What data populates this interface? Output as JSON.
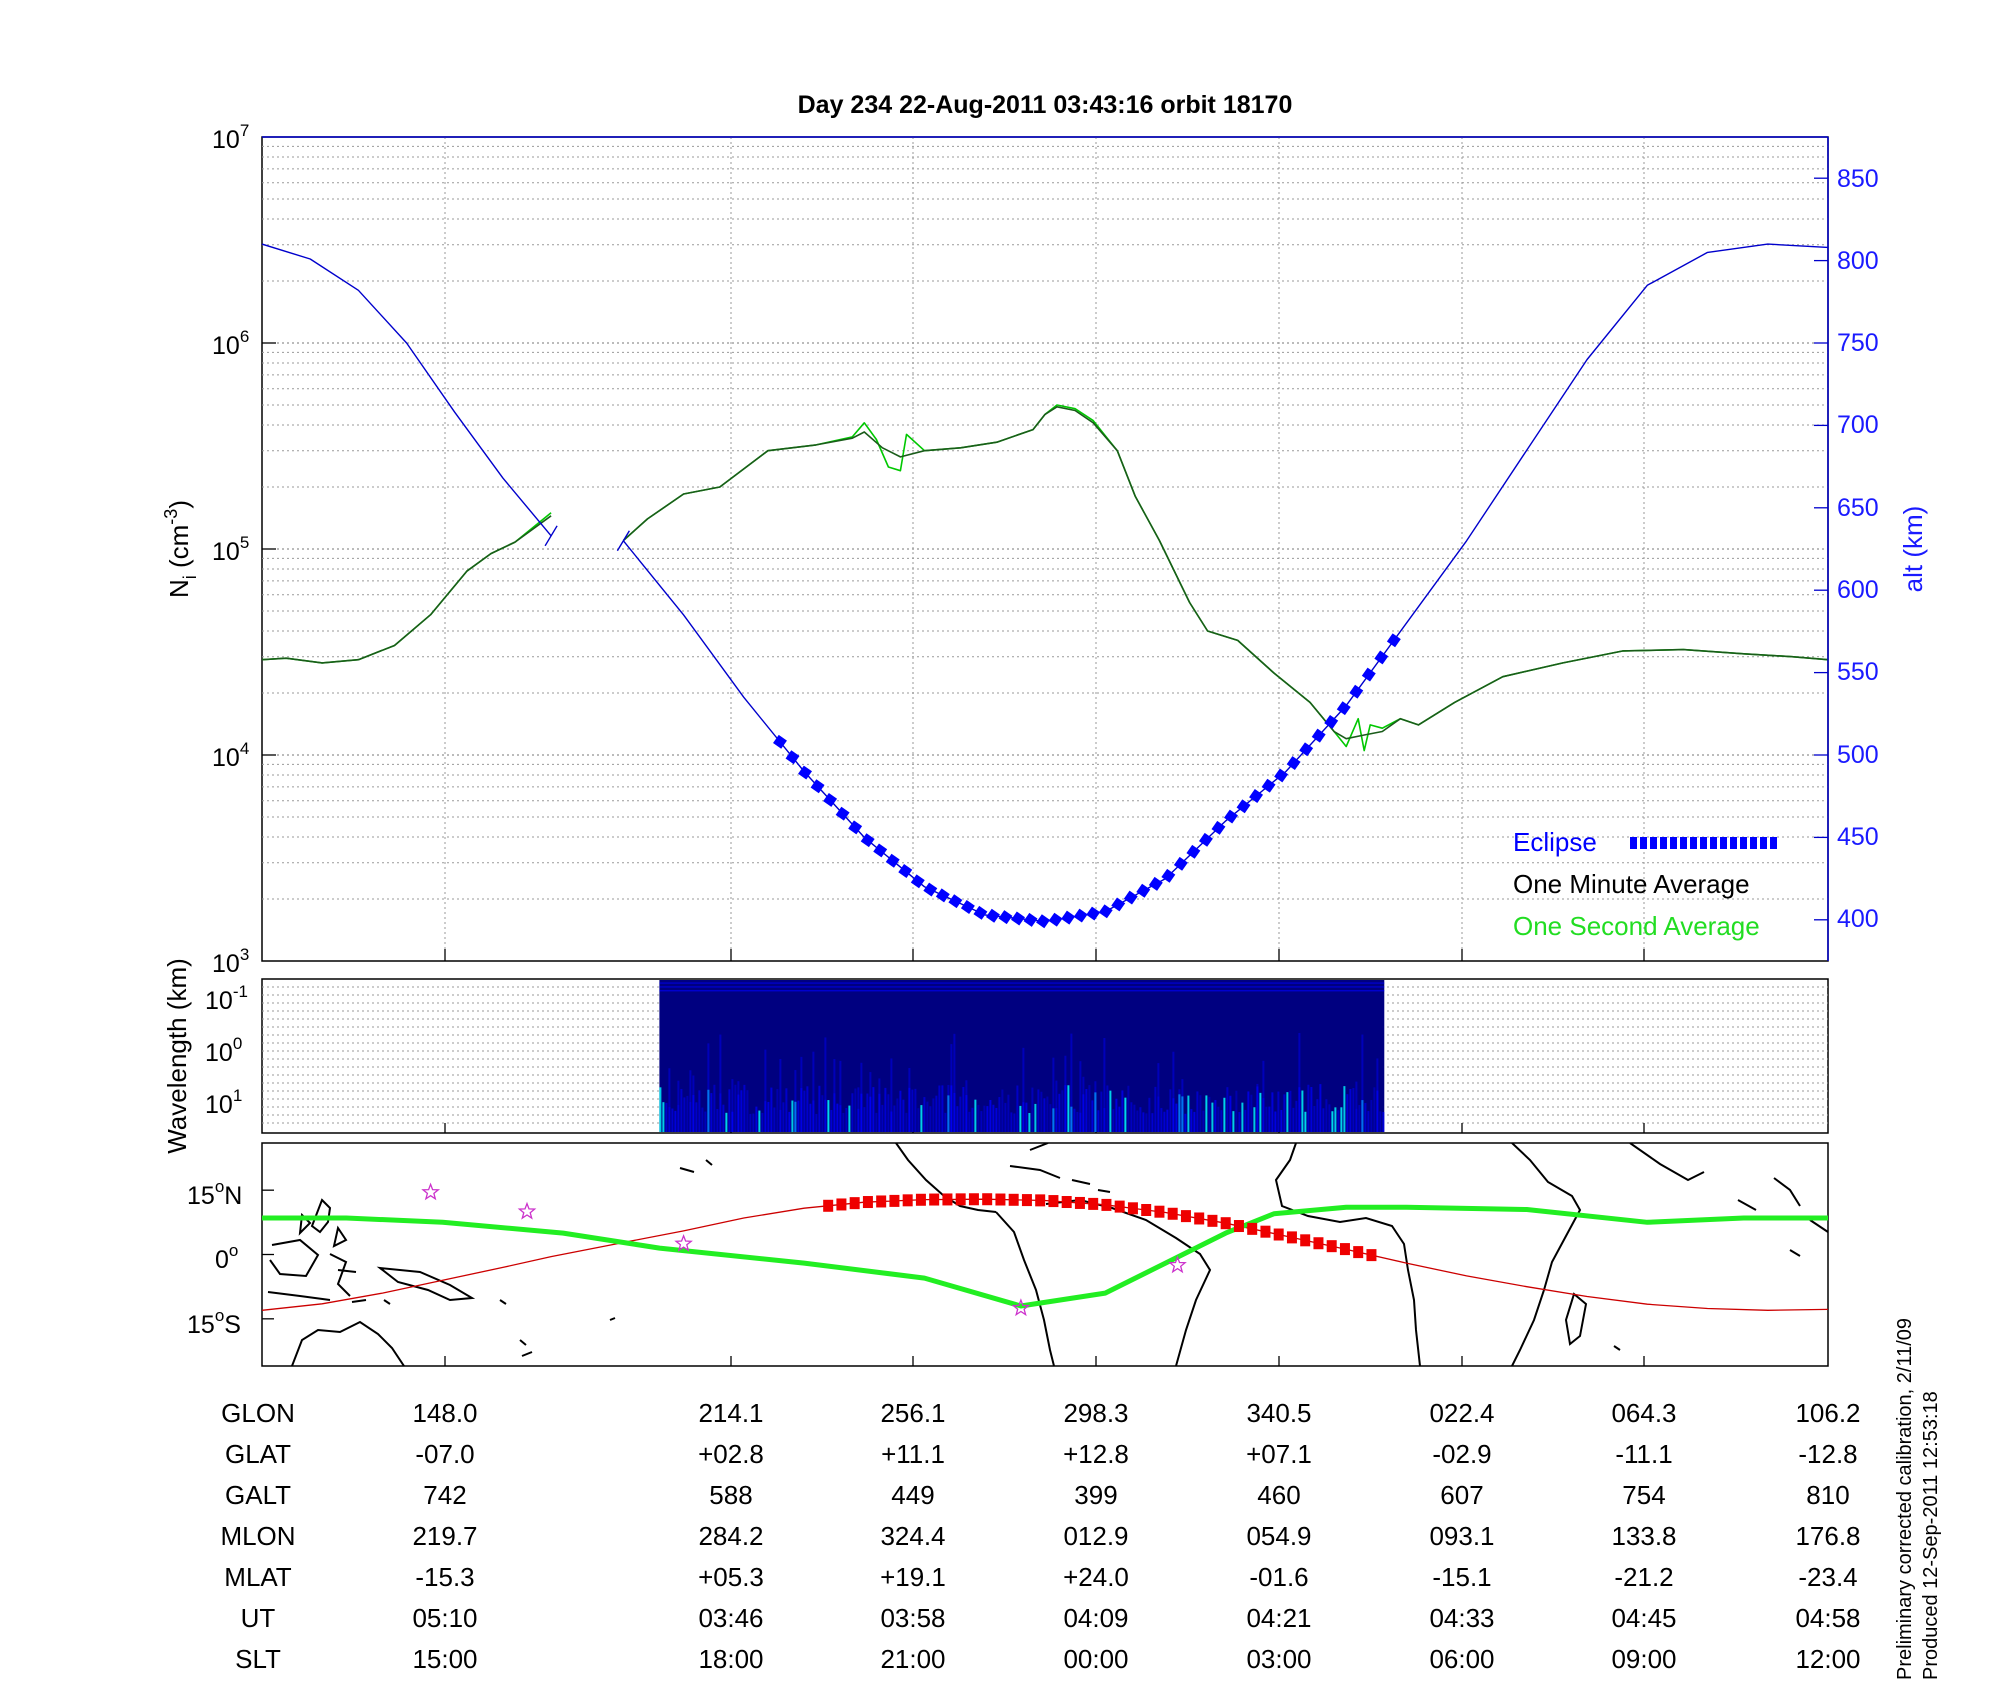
{
  "title": "Day 234  22-Aug-2011 03:43:16   orbit 18170",
  "chart_data": [
    {
      "type": "line",
      "panel": "density-altitude",
      "ylabel": {
        "base": "N",
        "sub": "i",
        "unit_open": " (cm",
        "unit_sup": "-3",
        "unit_close": ")"
      },
      "yscale": "log",
      "ylim": [
        1000,
        10000000
      ],
      "yticks": [
        {
          "base": "10",
          "exp": "3",
          "value": 1000
        },
        {
          "base": "10",
          "exp": "4",
          "value": 10000
        },
        {
          "base": "10",
          "exp": "5",
          "value": 100000
        },
        {
          "base": "10",
          "exp": "6",
          "value": 1000000
        },
        {
          "base": "10",
          "exp": "7",
          "value": 10000000
        }
      ],
      "y2label": "alt (km)",
      "y2lim": [
        375,
        875
      ],
      "y2ticks": [
        "400",
        "450",
        "500",
        "550",
        "600",
        "650",
        "700",
        "750",
        "800",
        "850"
      ],
      "grid": true,
      "legend_position": "bottom-right",
      "legend": [
        {
          "label": "Eclipse",
          "color": "#0000ff"
        },
        {
          "label": "One Minute Average",
          "color": "#000000"
        },
        {
          "label": "One Second Average",
          "color": "#00dd00"
        }
      ],
      "series": [
        {
          "series_role": "ion density (one second average)",
          "axis": "left",
          "color": "#00c800",
          "segments": [
            [
              [
                0,
                29000
              ],
              [
                0.2,
                29500
              ],
              [
                0.5,
                28000
              ],
              [
                0.8,
                29000
              ],
              [
                1.1,
                34000
              ],
              [
                1.4,
                48000
              ],
              [
                1.7,
                78000
              ],
              [
                1.9,
                95000
              ],
              [
                2.1,
                108000
              ],
              [
                2.4,
                150000
              ]
            ],
            [
              [
                3.0,
                110000
              ],
              [
                3.2,
                140000
              ],
              [
                3.5,
                185000
              ],
              [
                3.8,
                200000
              ],
              [
                4.2,
                300000
              ],
              [
                4.6,
                320000
              ],
              [
                4.9,
                350000
              ],
              [
                5.0,
                410000
              ],
              [
                5.1,
                340000
              ],
              [
                5.2,
                250000
              ],
              [
                5.3,
                240000
              ],
              [
                5.35,
                360000
              ],
              [
                5.5,
                300000
              ],
              [
                5.8,
                310000
              ],
              [
                6.1,
                330000
              ],
              [
                6.4,
                380000
              ],
              [
                6.5,
                450000
              ],
              [
                6.6,
                500000
              ],
              [
                6.75,
                480000
              ],
              [
                6.9,
                420000
              ],
              [
                7.1,
                300000
              ],
              [
                7.25,
                180000
              ],
              [
                7.45,
                110000
              ],
              [
                7.7,
                55000
              ],
              [
                7.85,
                40000
              ],
              [
                8.1,
                36000
              ],
              [
                8.4,
                25000
              ],
              [
                8.7,
                18000
              ],
              [
                8.9,
                13000
              ],
              [
                9.0,
                11000
              ],
              [
                9.1,
                15000
              ],
              [
                9.15,
                10500
              ],
              [
                9.2,
                14000
              ],
              [
                9.3,
                13500
              ],
              [
                9.45,
                15000
              ],
              [
                9.6,
                14000
              ],
              [
                9.9,
                18000
              ],
              [
                10.3,
                24000
              ],
              [
                10.8,
                28000
              ],
              [
                11.3,
                32000
              ],
              [
                11.8,
                32500
              ],
              [
                12.3,
                31000
              ],
              [
                12.7,
                30000
              ],
              [
                13.0,
                29000
              ]
            ]
          ]
        },
        {
          "series_role": "ion density (one minute average)",
          "axis": "left",
          "color": "#1a5c1a",
          "segments": [
            [
              [
                0,
                29000
              ],
              [
                0.2,
                29500
              ],
              [
                0.5,
                28000
              ],
              [
                0.8,
                29000
              ],
              [
                1.1,
                34000
              ],
              [
                1.4,
                48000
              ],
              [
                1.7,
                78000
              ],
              [
                1.9,
                95000
              ],
              [
                2.1,
                108000
              ],
              [
                2.4,
                145000
              ]
            ],
            [
              [
                3.0,
                110000
              ],
              [
                3.2,
                140000
              ],
              [
                3.5,
                185000
              ],
              [
                3.8,
                200000
              ],
              [
                4.2,
                300000
              ],
              [
                4.6,
                320000
              ],
              [
                4.9,
                345000
              ],
              [
                5.0,
                370000
              ],
              [
                5.15,
                310000
              ],
              [
                5.3,
                280000
              ],
              [
                5.5,
                300000
              ],
              [
                5.8,
                310000
              ],
              [
                6.1,
                330000
              ],
              [
                6.4,
                380000
              ],
              [
                6.5,
                450000
              ],
              [
                6.6,
                490000
              ],
              [
                6.75,
                470000
              ],
              [
                6.9,
                410000
              ],
              [
                7.1,
                300000
              ],
              [
                7.25,
                180000
              ],
              [
                7.45,
                110000
              ],
              [
                7.7,
                55000
              ],
              [
                7.85,
                40000
              ],
              [
                8.1,
                36000
              ],
              [
                8.4,
                25000
              ],
              [
                8.7,
                18000
              ],
              [
                8.9,
                13000
              ],
              [
                9.0,
                12000
              ],
              [
                9.15,
                12500
              ],
              [
                9.3,
                13000
              ],
              [
                9.45,
                15000
              ],
              [
                9.6,
                14000
              ],
              [
                9.9,
                18000
              ],
              [
                10.3,
                24000
              ],
              [
                10.8,
                28000
              ],
              [
                11.3,
                32000
              ],
              [
                11.8,
                32500
              ],
              [
                12.3,
                31000
              ],
              [
                12.7,
                30000
              ],
              [
                13.0,
                29000
              ]
            ]
          ]
        },
        {
          "series_role": "altitude",
          "axis": "right",
          "color": "#0000cc",
          "segments": [
            [
              [
                0,
                810
              ],
              [
                0.4,
                801
              ],
              [
                0.8,
                782
              ],
              [
                1.2,
                750
              ],
              [
                1.6,
                708
              ],
              [
                2.0,
                668
              ],
              [
                2.4,
                633
              ]
            ],
            [
              [
                3.0,
                630
              ],
              [
                3.5,
                585
              ],
              [
                4.0,
                535
              ],
              [
                4.5,
                490
              ],
              [
                5.0,
                450
              ],
              [
                5.5,
                420
              ],
              [
                6.0,
                403
              ],
              [
                6.5,
                399
              ],
              [
                7.0,
                405
              ],
              [
                7.5,
                425
              ],
              [
                8.0,
                460
              ],
              [
                8.5,
                490
              ],
              [
                9.0,
                530
              ],
              [
                9.5,
                580
              ],
              [
                10.0,
                630
              ],
              [
                10.5,
                685
              ],
              [
                11.0,
                740
              ],
              [
                11.5,
                785
              ],
              [
                12.0,
                805
              ],
              [
                12.5,
                810
              ],
              [
                13.0,
                808
              ]
            ]
          ]
        },
        {
          "series_role": "eclipse",
          "axis": "right",
          "color": "#0000ff",
          "range": [
            4.3,
            9.4
          ]
        }
      ]
    },
    {
      "type": "heatmap",
      "panel": "wavelength-spectrogram",
      "ylabel": "Wavelength (km)",
      "yscale": "log",
      "yticks": [
        {
          "base": "10",
          "exp": "-1"
        },
        {
          "base": "10",
          "exp": "0"
        },
        {
          "base": "10",
          "exp": "1"
        }
      ],
      "data_range": [
        3.0,
        9.3
      ],
      "colormap": [
        "#000080",
        "#0000ff",
        "#00ffff"
      ]
    },
    {
      "type": "line",
      "panel": "orbit-track-map",
      "yticks": [
        {
          "value": "15",
          "deg": "o",
          "hemi": "N",
          "lat": 15
        },
        {
          "value": "0",
          "deg": "o",
          "hemi": "",
          "lat": 0
        },
        {
          "value": "15",
          "deg": "o",
          "hemi": "S",
          "lat": -15
        }
      ],
      "ylim": [
        -26,
        26
      ],
      "series": [
        {
          "series_role": "orbit ground track",
          "color": "#cc0000",
          "points": [
            [
              0,
              -13
            ],
            [
              0.5,
              -11.5
            ],
            [
              1.0,
              -9
            ],
            [
              1.5,
              -6
            ],
            [
              2.0,
              -3
            ],
            [
              2.4,
              -0.5
            ],
            [
              3.0,
              2.8
            ],
            [
              3.5,
              5.5
            ],
            [
              4.0,
              8.5
            ],
            [
              4.5,
              10.8
            ],
            [
              5.0,
              12.2
            ],
            [
              5.5,
              12.8
            ],
            [
              6.0,
              12.9
            ],
            [
              6.5,
              12.6
            ],
            [
              7.0,
              11.6
            ],
            [
              7.5,
              9.8
            ],
            [
              8.0,
              7.3
            ],
            [
              8.5,
              4.3
            ],
            [
              9.0,
              1.2
            ],
            [
              9.5,
              -2.0
            ],
            [
              10.0,
              -5.0
            ],
            [
              10.5,
              -7.5
            ],
            [
              11.0,
              -9.8
            ],
            [
              11.5,
              -11.6
            ],
            [
              12.0,
              -12.6
            ],
            [
              12.5,
              -13
            ],
            [
              13.0,
              -12.8
            ]
          ]
        },
        {
          "series_role": "magnetic equator",
          "color": "#22ee22",
          "points": [
            [
              0,
              8.5
            ],
            [
              0.7,
              8.5
            ],
            [
              1.5,
              7.5
            ],
            [
              2.5,
              5
            ],
            [
              3.3,
              1.5
            ],
            [
              4.5,
              -2
            ],
            [
              5.5,
              -5.5
            ],
            [
              6.3,
              -12
            ],
            [
              7.0,
              -9
            ],
            [
              7.5,
              -2
            ],
            [
              8.0,
              5
            ],
            [
              8.4,
              9.5
            ],
            [
              9.0,
              11
            ],
            [
              9.5,
              11
            ],
            [
              10.5,
              10.5
            ],
            [
              11.5,
              7.5
            ],
            [
              12.3,
              8.5
            ],
            [
              13.0,
              8.5
            ]
          ]
        },
        {
          "series_role": "eclipse on track",
          "color": "#ee0000",
          "range": [
            4.7,
            9.3
          ]
        }
      ],
      "markers": [
        [
          1.4,
          14.5
        ],
        [
          2.2,
          10
        ],
        [
          3.5,
          2.5
        ],
        [
          6.3,
          -12.5
        ],
        [
          7.6,
          -2.5
        ]
      ]
    }
  ],
  "table": {
    "rows": [
      {
        "label": "GLON",
        "values": [
          "148.0",
          "214.1",
          "256.1",
          "298.3",
          "340.5",
          "022.4",
          "064.3",
          "106.2"
        ]
      },
      {
        "label": "GLAT",
        "values": [
          "-07.0",
          "+02.8",
          "+11.1",
          "+12.8",
          "+07.1",
          "-02.9",
          "-11.1",
          "-12.8"
        ]
      },
      {
        "label": "GALT",
        "values": [
          "742",
          "588",
          "449",
          "399",
          "460",
          "607",
          "754",
          "810"
        ]
      },
      {
        "label": "MLON",
        "values": [
          "219.7",
          "284.2",
          "324.4",
          "012.9",
          "054.9",
          "093.1",
          "133.8",
          "176.8"
        ]
      },
      {
        "label": "MLAT",
        "values": [
          "-15.3",
          "+05.3",
          "+19.1",
          "+24.0",
          "-01.6",
          "-15.1",
          "-21.2",
          "-23.4"
        ]
      },
      {
        "label": "UT",
        "values": [
          "05:10",
          "03:46",
          "03:58",
          "04:09",
          "04:21",
          "04:33",
          "04:45",
          "04:58"
        ]
      },
      {
        "label": "SLT",
        "values": [
          "15:00",
          "18:00",
          "21:00",
          "00:00",
          "03:00",
          "06:00",
          "09:00",
          "12:00"
        ]
      }
    ]
  },
  "footer": {
    "line1": "Preliminary corrected calibration, 2/11/09",
    "line2": "Produced 12-Sep-2011 12:53:18"
  }
}
